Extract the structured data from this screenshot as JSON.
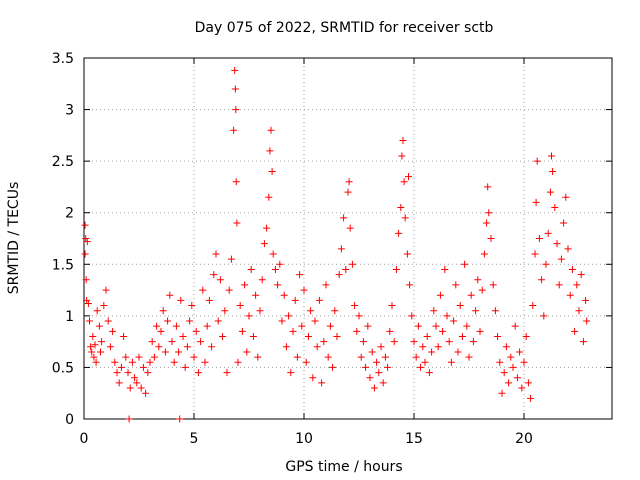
{
  "chart_data": {
    "type": "scatter",
    "title": "Day 075 of 2022, SRMTID for receiver sctb",
    "xlabel": "GPS time / hours",
    "ylabel": "SRMTID / TECUs",
    "xlim": [
      0,
      24
    ],
    "ylim": [
      0,
      3.5
    ],
    "grid": true,
    "xticks": [
      0,
      5,
      10,
      15,
      20
    ],
    "xtick_labels": [
      "0",
      "5",
      "10",
      "15",
      "20"
    ],
    "yticks": [
      0,
      0.5,
      1,
      1.5,
      2,
      2.5,
      3,
      3.5
    ],
    "ytick_labels": [
      "0",
      "0.5",
      "1",
      "1.5",
      "2",
      "2.5",
      "3",
      "3.5"
    ],
    "marker": "+",
    "color": "#ff0000",
    "series": [
      {
        "name": "SRMTID",
        "points": [
          [
            0.05,
            1.88
          ],
          [
            0.05,
            1.6
          ],
          [
            0.08,
            1.75
          ],
          [
            0.1,
            1.35
          ],
          [
            0.12,
            1.15
          ],
          [
            0.15,
            1.72
          ],
          [
            0.2,
            1.12
          ],
          [
            0.25,
            0.95
          ],
          [
            0.3,
            0.7
          ],
          [
            0.35,
            0.65
          ],
          [
            0.4,
            0.8
          ],
          [
            0.45,
            0.6
          ],
          [
            0.5,
            0.72
          ],
          [
            0.55,
            0.55
          ],
          [
            0.6,
            1.05
          ],
          [
            0.7,
            0.9
          ],
          [
            0.75,
            0.65
          ],
          [
            0.8,
            0.75
          ],
          [
            0.9,
            1.1
          ],
          [
            1.0,
            1.25
          ],
          [
            1.1,
            0.95
          ],
          [
            1.2,
            0.7
          ],
          [
            1.3,
            0.85
          ],
          [
            1.4,
            0.55
          ],
          [
            1.5,
            0.45
          ],
          [
            1.6,
            0.35
          ],
          [
            1.7,
            0.5
          ],
          [
            1.8,
            0.8
          ],
          [
            1.9,
            0.6
          ],
          [
            2.0,
            0.45
          ],
          [
            2.1,
            0.3
          ],
          [
            2.2,
            0.55
          ],
          [
            2.3,
            0.4
          ],
          [
            2.4,
            0.35
          ],
          [
            2.5,
            0.6
          ],
          [
            2.6,
            0.3
          ],
          [
            2.7,
            0.5
          ],
          [
            2.8,
            0.25
          ],
          [
            2.9,
            0.45
          ],
          [
            3.0,
            0.55
          ],
          [
            3.1,
            0.75
          ],
          [
            3.2,
            0.6
          ],
          [
            3.3,
            0.9
          ],
          [
            3.4,
            0.7
          ],
          [
            3.5,
            0.85
          ],
          [
            3.6,
            1.05
          ],
          [
            3.7,
            0.65
          ],
          [
            3.8,
            0.95
          ],
          [
            3.9,
            1.2
          ],
          [
            4.0,
            0.75
          ],
          [
            4.1,
            0.55
          ],
          [
            4.2,
            0.9
          ],
          [
            4.3,
            0.65
          ],
          [
            4.4,
            1.15
          ],
          [
            4.5,
            0.8
          ],
          [
            4.6,
            0.5
          ],
          [
            4.7,
            0.7
          ],
          [
            4.8,
            0.95
          ],
          [
            4.9,
            1.1
          ],
          [
            5.0,
            0.6
          ],
          [
            5.1,
            0.85
          ],
          [
            5.2,
            0.45
          ],
          [
            5.3,
            0.75
          ],
          [
            5.4,
            1.25
          ],
          [
            5.5,
            0.55
          ],
          [
            5.6,
            0.9
          ],
          [
            5.7,
            1.15
          ],
          [
            5.8,
            0.7
          ],
          [
            5.9,
            1.4
          ],
          [
            6.0,
            1.6
          ],
          [
            6.1,
            0.95
          ],
          [
            6.2,
            1.35
          ],
          [
            6.3,
            0.8
          ],
          [
            6.4,
            1.05
          ],
          [
            6.5,
            0.45
          ],
          [
            6.6,
            1.25
          ],
          [
            6.7,
            1.55
          ],
          [
            6.8,
            2.8
          ],
          [
            6.85,
            3.38
          ],
          [
            6.88,
            3.2
          ],
          [
            6.9,
            3.0
          ],
          [
            6.92,
            2.3
          ],
          [
            6.95,
            1.9
          ],
          [
            7.0,
            0.55
          ],
          [
            7.1,
            1.1
          ],
          [
            7.2,
            0.85
          ],
          [
            7.3,
            1.3
          ],
          [
            7.4,
            0.65
          ],
          [
            7.5,
            1.0
          ],
          [
            7.6,
            1.45
          ],
          [
            7.7,
            0.8
          ],
          [
            7.8,
            1.2
          ],
          [
            7.9,
            0.6
          ],
          [
            8.0,
            1.05
          ],
          [
            8.1,
            1.35
          ],
          [
            8.2,
            1.7
          ],
          [
            8.3,
            1.85
          ],
          [
            8.4,
            2.15
          ],
          [
            8.45,
            2.6
          ],
          [
            8.5,
            2.8
          ],
          [
            8.55,
            2.4
          ],
          [
            8.6,
            1.6
          ],
          [
            8.7,
            1.45
          ],
          [
            8.8,
            1.3
          ],
          [
            8.9,
            1.5
          ],
          [
            9.0,
            0.95
          ],
          [
            9.1,
            1.2
          ],
          [
            9.2,
            0.7
          ],
          [
            9.3,
            1.0
          ],
          [
            9.4,
            0.45
          ],
          [
            9.5,
            0.85
          ],
          [
            9.6,
            1.15
          ],
          [
            9.7,
            0.6
          ],
          [
            9.8,
            1.4
          ],
          [
            9.9,
            0.9
          ],
          [
            10.0,
            1.25
          ],
          [
            10.1,
            0.55
          ],
          [
            10.2,
            0.8
          ],
          [
            10.3,
            1.05
          ],
          [
            10.4,
            0.4
          ],
          [
            10.5,
            0.95
          ],
          [
            10.6,
            0.7
          ],
          [
            10.7,
            1.15
          ],
          [
            10.8,
            0.35
          ],
          [
            10.9,
            0.75
          ],
          [
            11.0,
            1.3
          ],
          [
            11.1,
            0.6
          ],
          [
            11.2,
            0.9
          ],
          [
            11.3,
            0.5
          ],
          [
            11.4,
            1.05
          ],
          [
            11.5,
            0.8
          ],
          [
            11.6,
            1.4
          ],
          [
            11.7,
            1.65
          ],
          [
            11.8,
            1.95
          ],
          [
            11.9,
            1.45
          ],
          [
            12.0,
            2.2
          ],
          [
            12.05,
            2.3
          ],
          [
            12.1,
            1.85
          ],
          [
            12.2,
            1.5
          ],
          [
            12.3,
            1.1
          ],
          [
            12.4,
            0.85
          ],
          [
            12.5,
            1.0
          ],
          [
            12.6,
            0.6
          ],
          [
            12.7,
            0.75
          ],
          [
            12.8,
            0.5
          ],
          [
            12.9,
            0.9
          ],
          [
            13.0,
            0.4
          ],
          [
            13.1,
            0.65
          ],
          [
            13.2,
            0.3
          ],
          [
            13.3,
            0.55
          ],
          [
            13.4,
            0.45
          ],
          [
            13.5,
            0.7
          ],
          [
            13.6,
            0.35
          ],
          [
            13.7,
            0.6
          ],
          [
            13.8,
            0.5
          ],
          [
            13.9,
            0.85
          ],
          [
            14.0,
            1.1
          ],
          [
            14.1,
            0.75
          ],
          [
            14.2,
            1.45
          ],
          [
            14.3,
            1.8
          ],
          [
            14.4,
            2.05
          ],
          [
            14.45,
            2.55
          ],
          [
            14.5,
            2.7
          ],
          [
            14.55,
            2.3
          ],
          [
            14.6,
            1.95
          ],
          [
            14.7,
            1.6
          ],
          [
            14.75,
            2.35
          ],
          [
            14.8,
            1.3
          ],
          [
            14.9,
            1.0
          ],
          [
            15.0,
            0.75
          ],
          [
            15.1,
            0.6
          ],
          [
            15.2,
            0.9
          ],
          [
            15.3,
            0.5
          ],
          [
            15.4,
            0.7
          ],
          [
            15.5,
            0.55
          ],
          [
            15.6,
            0.8
          ],
          [
            15.7,
            0.45
          ],
          [
            15.8,
            0.65
          ],
          [
            15.9,
            1.05
          ],
          [
            16.0,
            0.9
          ],
          [
            16.1,
            0.7
          ],
          [
            16.2,
            1.2
          ],
          [
            16.3,
            0.85
          ],
          [
            16.4,
            1.45
          ],
          [
            16.5,
            1.0
          ],
          [
            16.6,
            0.75
          ],
          [
            16.7,
            0.55
          ],
          [
            16.8,
            0.95
          ],
          [
            16.9,
            1.3
          ],
          [
            17.0,
            0.65
          ],
          [
            17.1,
            1.1
          ],
          [
            17.2,
            0.8
          ],
          [
            17.3,
            1.5
          ],
          [
            17.4,
            0.9
          ],
          [
            17.5,
            0.6
          ],
          [
            17.6,
            1.2
          ],
          [
            17.7,
            0.75
          ],
          [
            17.8,
            1.05
          ],
          [
            17.9,
            1.35
          ],
          [
            18.0,
            0.85
          ],
          [
            18.1,
            1.25
          ],
          [
            18.2,
            1.6
          ],
          [
            18.3,
            1.9
          ],
          [
            18.35,
            2.25
          ],
          [
            18.4,
            2.0
          ],
          [
            18.5,
            1.75
          ],
          [
            18.6,
            1.3
          ],
          [
            18.7,
            1.05
          ],
          [
            18.8,
            0.8
          ],
          [
            18.9,
            0.55
          ],
          [
            19.0,
            0.25
          ],
          [
            19.1,
            0.45
          ],
          [
            19.2,
            0.7
          ],
          [
            19.3,
            0.35
          ],
          [
            19.4,
            0.6
          ],
          [
            19.5,
            0.5
          ],
          [
            19.6,
            0.9
          ],
          [
            19.7,
            0.4
          ],
          [
            19.8,
            0.65
          ],
          [
            19.9,
            0.3
          ],
          [
            20.0,
            0.55
          ],
          [
            20.1,
            0.8
          ],
          [
            20.2,
            0.35
          ],
          [
            20.3,
            0.2
          ],
          [
            20.4,
            1.1
          ],
          [
            20.5,
            1.6
          ],
          [
            20.55,
            2.1
          ],
          [
            20.6,
            2.5
          ],
          [
            20.7,
            1.75
          ],
          [
            20.8,
            1.35
          ],
          [
            20.9,
            1.0
          ],
          [
            21.0,
            1.5
          ],
          [
            21.1,
            1.8
          ],
          [
            21.2,
            2.2
          ],
          [
            21.25,
            2.55
          ],
          [
            21.3,
            2.4
          ],
          [
            21.4,
            2.05
          ],
          [
            21.5,
            1.7
          ],
          [
            21.6,
            1.3
          ],
          [
            21.7,
            1.55
          ],
          [
            21.8,
            1.9
          ],
          [
            21.9,
            2.15
          ],
          [
            22.0,
            1.65
          ],
          [
            22.1,
            1.2
          ],
          [
            22.2,
            1.45
          ],
          [
            22.3,
            0.85
          ],
          [
            22.4,
            1.3
          ],
          [
            22.5,
            1.05
          ],
          [
            22.6,
            1.4
          ],
          [
            22.7,
            0.75
          ],
          [
            22.8,
            1.15
          ],
          [
            22.85,
            0.95
          ],
          [
            2.05,
            0.0
          ],
          [
            4.35,
            0.0
          ]
        ]
      }
    ]
  }
}
